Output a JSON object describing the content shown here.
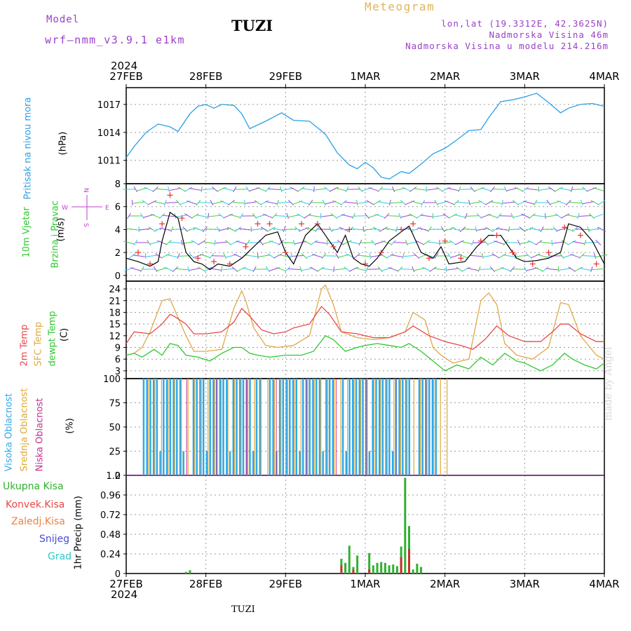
{
  "header": {
    "model_label": "Model",
    "model_name": "wrf–nmm_v3.9.1 e1km",
    "station": "TUZI",
    "product": "Meteogram",
    "lonlat": "lon,lat (19.3312E, 42.3625N)",
    "elevation": "Nadmorska Visina 46m",
    "model_elevation": "Nadmorska Visina u modelu 214.216m"
  },
  "x_axis": {
    "year": "2024",
    "ticks": [
      "27FEB",
      "28FEB",
      "29FEB",
      "1MAR",
      "2MAR",
      "3MAR",
      "4MAR"
    ]
  },
  "footer": {
    "station": "TUZI",
    "credit": "made by Angel"
  },
  "colors": {
    "pressure": "#2aa0e6",
    "wind_speed": "#000000",
    "gust": "#e83030",
    "t2m": "#e84848",
    "tsfc": "#e0a848",
    "dewpoint": "#30c830",
    "high_cloud": "#30a8e8",
    "mid_cloud": "#e0a830",
    "low_cloud": "#c83090",
    "total_precip": "#30b030",
    "conv_precip": "#c83030"
  },
  "panels": {
    "pressure": {
      "label1": "Pritisak na nivou mora",
      "unit": "(hPa)"
    },
    "wind": {
      "label1": "10m Vjetar",
      "label2": "Brzina i Pravac",
      "unit": "(m/s)",
      "compass_w": "W",
      "compass_e": "E",
      "compass_n": "N",
      "compass_s": "S"
    },
    "temp": {
      "label1": "2m Temp",
      "label2": "SFC Temp",
      "label3": "dewpt Temp",
      "unit": "(C)"
    },
    "cloud": {
      "label1": "Visoka Oblacnost",
      "label2": "Srednja Oblacnost",
      "label3": "Niska Oblacnost",
      "unit": "(%)"
    },
    "precip": {
      "label1": "Ukupna Kisa",
      "label2": "Konvek.Kisa",
      "label3": "Zaledj.Kisa",
      "label4": "Snijeg",
      "label5": "Grad",
      "unit": "1hr Precip (mm)"
    }
  },
  "chart_data": [
    {
      "type": "line",
      "name": "pressure",
      "x": [
        "27FEB",
        "28FEB",
        "29FEB",
        "1MAR",
        "2MAR",
        "3MAR",
        "4MAR"
      ],
      "yticks": [
        1011,
        1014,
        1017
      ],
      "ylim": [
        1008.5,
        1018.8
      ],
      "series": [
        {
          "x": [
            0,
            0.1,
            0.25,
            0.4,
            0.55,
            0.65,
            0.8,
            0.9,
            1.0,
            1.1,
            1.2,
            1.35,
            1.45,
            1.55,
            1.75,
            1.95,
            2.1,
            2.3,
            2.5,
            2.65,
            2.8,
            2.9,
            3.0,
            3.1,
            3.2,
            3.3,
            3.45,
            3.55,
            3.7,
            3.85,
            4.0,
            4.15,
            4.3,
            4.45,
            4.55,
            4.7,
            4.85,
            5.0,
            5.15,
            5.3,
            5.45,
            5.55,
            5.7,
            5.85,
            6.0
          ],
          "values": [
            1011.3,
            1012.5,
            1014,
            1014.9,
            1014.6,
            1014.1,
            1016,
            1016.8,
            1017,
            1016.6,
            1017,
            1016.9,
            1016,
            1014.4,
            1015.2,
            1016.1,
            1015.3,
            1015.2,
            1013.8,
            1011.8,
            1010.5,
            1010.1,
            1010.8,
            1010.2,
            1009.2,
            1009.0,
            1009.8,
            1009.6,
            1010.6,
            1011.7,
            1012.3,
            1013.2,
            1014.2,
            1014.3,
            1015.6,
            1017.3,
            1017.5,
            1017.8,
            1018.2,
            1017.2,
            1016.1,
            1016.6,
            1017,
            1017.1,
            1016.8
          ]
        }
      ]
    },
    {
      "type": "line",
      "name": "wind",
      "x": [
        "27FEB",
        "28FEB",
        "29FEB",
        "1MAR",
        "2MAR",
        "3MAR",
        "4MAR"
      ],
      "yticks": [
        0,
        2,
        4,
        6,
        8
      ],
      "ylim": [
        -0.5,
        8
      ],
      "series": [
        {
          "name": "speed",
          "x": [
            0,
            0.15,
            0.3,
            0.4,
            0.45,
            0.55,
            0.65,
            0.75,
            0.85,
            0.95,
            1.05,
            1.15,
            1.3,
            1.45,
            1.6,
            1.75,
            1.9,
            2.0,
            2.1,
            2.25,
            2.4,
            2.55,
            2.65,
            2.75,
            2.85,
            2.95,
            3.05,
            3.15,
            3.3,
            3.45,
            3.55,
            3.7,
            3.85,
            3.95,
            4.05,
            4.25,
            4.4,
            4.55,
            4.7,
            4.8,
            4.9,
            5.0,
            5.15,
            5.3,
            5.45,
            5.55,
            5.7,
            5.85,
            6.0
          ],
          "values": [
            1.5,
            1.2,
            0.8,
            1.2,
            3,
            5.5,
            5,
            2,
            1.2,
            1,
            0.5,
            1,
            0.8,
            1.5,
            2.5,
            3.5,
            3.8,
            2,
            1,
            3.5,
            4.5,
            3,
            2,
            3.5,
            1.5,
            1,
            0.8,
            1.5,
            3,
            3.8,
            4.3,
            2,
            1.5,
            2.5,
            1,
            1.2,
            2.5,
            3.5,
            3.5,
            2.5,
            1.5,
            1.2,
            1.3,
            1.5,
            2,
            4.5,
            4.2,
            3,
            1
          ]
        },
        {
          "name": "gust",
          "x": [
            0.15,
            0.3,
            0.45,
            0.55,
            0.7,
            0.9,
            1.1,
            1.3,
            1.5,
            1.65,
            1.8,
            2.0,
            2.2,
            2.4,
            2.6,
            2.8,
            3.0,
            3.2,
            3.45,
            3.6,
            3.8,
            4.0,
            4.2,
            4.45,
            4.65,
            4.85,
            5.1,
            5.3,
            5.5,
            5.7,
            5.9
          ],
          "values": [
            2,
            1,
            4.5,
            7,
            5,
            1.5,
            1.2,
            1,
            2.5,
            4.5,
            4.5,
            2,
            4.5,
            4.5,
            2.5,
            4,
            1,
            2,
            4,
            4.5,
            1.5,
            3,
            1.5,
            3,
            3.5,
            2,
            1,
            2,
            4.2,
            3.5,
            1
          ]
        }
      ]
    },
    {
      "type": "line",
      "name": "temperature",
      "x": [
        "27FEB",
        "28FEB",
        "29FEB",
        "1MAR",
        "2MAR",
        "3MAR",
        "4MAR"
      ],
      "yticks": [
        3,
        6,
        9,
        12,
        15,
        18,
        21,
        24
      ],
      "ylim": [
        1,
        26
      ],
      "series": [
        {
          "name": "t2m",
          "x": [
            0,
            0.1,
            0.3,
            0.45,
            0.55,
            0.6,
            0.75,
            0.85,
            1.0,
            1.2,
            1.35,
            1.45,
            1.55,
            1.7,
            1.85,
            2.0,
            2.1,
            2.3,
            2.45,
            2.55,
            2.7,
            2.9,
            3.1,
            3.3,
            3.5,
            3.6,
            3.8,
            4.0,
            4.2,
            4.35,
            4.5,
            4.65,
            4.8,
            5.0,
            5.2,
            5.35,
            5.45,
            5.55,
            5.7,
            5.9,
            6.0
          ],
          "values": [
            10,
            13,
            12.5,
            15,
            17.5,
            17,
            15,
            12.5,
            12.5,
            13,
            15.5,
            19,
            17,
            13.5,
            12.5,
            13,
            14,
            15,
            19.5,
            17.5,
            13,
            12.5,
            11.5,
            11.5,
            13,
            14.5,
            12,
            10.5,
            9.5,
            8.5,
            11,
            14.5,
            12,
            10.5,
            10.5,
            13,
            15,
            15,
            12.5,
            10.5,
            10.5
          ]
        },
        {
          "name": "sfc",
          "x": [
            0,
            0.1,
            0.2,
            0.3,
            0.45,
            0.55,
            0.6,
            0.75,
            0.85,
            1.0,
            1.2,
            1.35,
            1.45,
            1.5,
            1.6,
            1.75,
            1.9,
            2.1,
            2.3,
            2.45,
            2.5,
            2.6,
            2.7,
            2.9,
            3.1,
            3.3,
            3.5,
            3.6,
            3.75,
            3.85,
            3.95,
            4.1,
            4.3,
            4.45,
            4.55,
            4.65,
            4.75,
            4.9,
            5.1,
            5.3,
            5.45,
            5.55,
            5.7,
            5.9,
            6.0
          ],
          "values": [
            7,
            7.5,
            9,
            13,
            21,
            21.5,
            19,
            12,
            8,
            8,
            8.5,
            19,
            23.5,
            21,
            14,
            9.5,
            9,
            9.5,
            12,
            24,
            25,
            20,
            13,
            11.5,
            11,
            11.5,
            13,
            18,
            16,
            9,
            7,
            5,
            6,
            21,
            23,
            20,
            10,
            7,
            6,
            9,
            20.5,
            20,
            12,
            7,
            6
          ]
        },
        {
          "name": "dewpt",
          "x": [
            0,
            0.1,
            0.2,
            0.35,
            0.45,
            0.55,
            0.65,
            0.75,
            0.9,
            1.05,
            1.2,
            1.35,
            1.45,
            1.55,
            1.65,
            1.8,
            2.0,
            2.2,
            2.35,
            2.5,
            2.6,
            2.75,
            2.9,
            3.0,
            3.15,
            3.3,
            3.45,
            3.55,
            3.7,
            3.85,
            4.0,
            4.15,
            4.3,
            4.45,
            4.6,
            4.75,
            4.9,
            5.0,
            5.2,
            5.35,
            5.5,
            5.6,
            5.75,
            5.9,
            6.0
          ],
          "values": [
            7,
            7.5,
            6.5,
            8.5,
            7,
            10,
            9.5,
            7,
            6.5,
            5.5,
            7.5,
            9,
            9,
            7.5,
            7,
            6.5,
            7,
            7,
            8,
            12,
            11,
            8,
            9,
            9.5,
            10,
            9.5,
            9,
            10,
            8,
            5.5,
            3,
            4.5,
            3.5,
            6.5,
            4.5,
            7.5,
            5.5,
            5,
            3,
            4.5,
            7.5,
            6,
            4.5,
            3.5,
            5
          ]
        }
      ]
    },
    {
      "type": "bar",
      "name": "cloud_cover",
      "x": [
        "27FEB",
        "28FEB",
        "29FEB",
        "1MAR",
        "2MAR",
        "3MAR",
        "4MAR"
      ],
      "yticks": [
        0,
        25,
        50,
        75,
        100
      ],
      "ylim": [
        0,
        100
      ],
      "series": [
        {
          "name": "high",
          "values_note": "hourly",
          "x_start": 0.2,
          "x_end": 3.9,
          "level": 100
        },
        {
          "name": "mid",
          "x_start": 0.2,
          "x_end": 4.0,
          "level": 100
        },
        {
          "name": "low",
          "x_start": 0.5,
          "x_end": 3.8,
          "level": 100
        }
      ]
    },
    {
      "type": "bar",
      "name": "precipitation",
      "x": [
        "27FEB",
        "28FEB",
        "29FEB",
        "1MAR",
        "2MAR",
        "3MAR",
        "4MAR"
      ],
      "yticks": [
        0,
        0.24,
        0.48,
        0.72,
        0.96,
        1.2
      ],
      "ylim": [
        0,
        1.2
      ],
      "series": [
        {
          "name": "total",
          "x": [
            0.75,
            0.8,
            2.7,
            2.75,
            2.8,
            2.85,
            2.9,
            2.95,
            3.0,
            3.05,
            3.1,
            3.15,
            3.2,
            3.25,
            3.3,
            3.35,
            3.4,
            3.45,
            3.5,
            3.55,
            3.6,
            3.65,
            3.7,
            3.75,
            3.8
          ],
          "values": [
            0.02,
            0.04,
            0.18,
            0.13,
            0.34,
            0.08,
            0.22,
            0.0,
            0.0,
            0.25,
            0.1,
            0.13,
            0.14,
            0.13,
            0.1,
            0.11,
            0.09,
            0.33,
            1.17,
            0.58,
            0.05,
            0.12,
            0.08,
            0.0,
            0.0
          ]
        },
        {
          "name": "convective",
          "x": [
            2.7,
            2.85,
            3.05,
            3.45,
            3.55
          ],
          "values": [
            0.1,
            0.05,
            0.05,
            0.2,
            0.3
          ]
        }
      ]
    }
  ]
}
